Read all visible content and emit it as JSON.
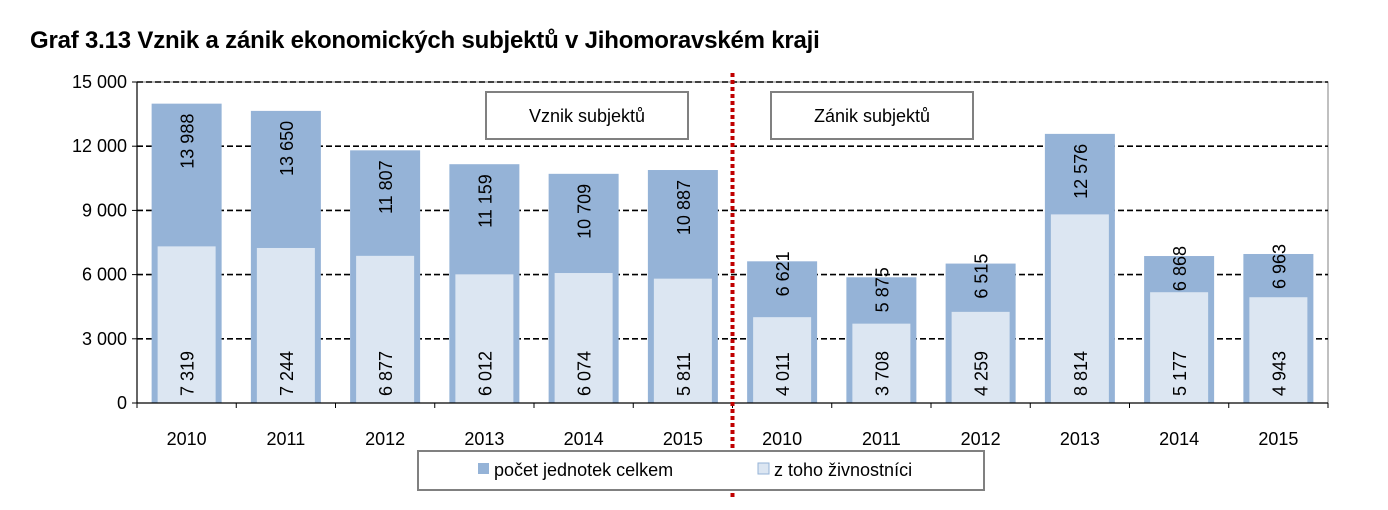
{
  "title": "Graf 3.13 Vznik a zánik ekonomických subjektů v Jihomoravském kraji",
  "colors": {
    "total": "#95b3d7",
    "trades": "#dce6f2",
    "divider": "#c00000",
    "grid": "#000000"
  },
  "chart_data": {
    "type": "bar",
    "title": "Graf 3.13 Vznik a zánik ekonomických subjektů v Jihomoravském kraji",
    "ylim": [
      0,
      15000
    ],
    "yticks": [
      "0",
      "3 000",
      "6 000",
      "9 000",
      "12 000",
      "15 000"
    ],
    "grid": true,
    "legend_position": "bottom",
    "sections": [
      "Vznik subjektů",
      "Zánik subjektů"
    ],
    "categories": [
      "2010",
      "2011",
      "2012",
      "2013",
      "2014",
      "2015",
      "2010",
      "2011",
      "2012",
      "2013",
      "2014",
      "2015"
    ],
    "series": [
      {
        "name": "počet jednotek celkem",
        "values": [
          13988,
          13650,
          11807,
          11159,
          10709,
          10887,
          6621,
          5875,
          6515,
          12576,
          6868,
          6963
        ],
        "labels": [
          "13 988",
          "13 650",
          "11 807",
          "11 159",
          "10 709",
          "10 887",
          "6 621",
          "5 875",
          "6 515",
          "12 576",
          "6 868",
          "6 963"
        ]
      },
      {
        "name": "z toho živnostníci",
        "values": [
          7319,
          7244,
          6877,
          6012,
          6074,
          5811,
          4011,
          3708,
          4259,
          8814,
          5177,
          4943
        ],
        "labels": [
          "7 319",
          "7 244",
          "6 877",
          "6 012",
          "6 074",
          "5 811",
          "4 011",
          "3 708",
          "4 259",
          "8 814",
          "5 177",
          "4 943"
        ]
      }
    ]
  }
}
